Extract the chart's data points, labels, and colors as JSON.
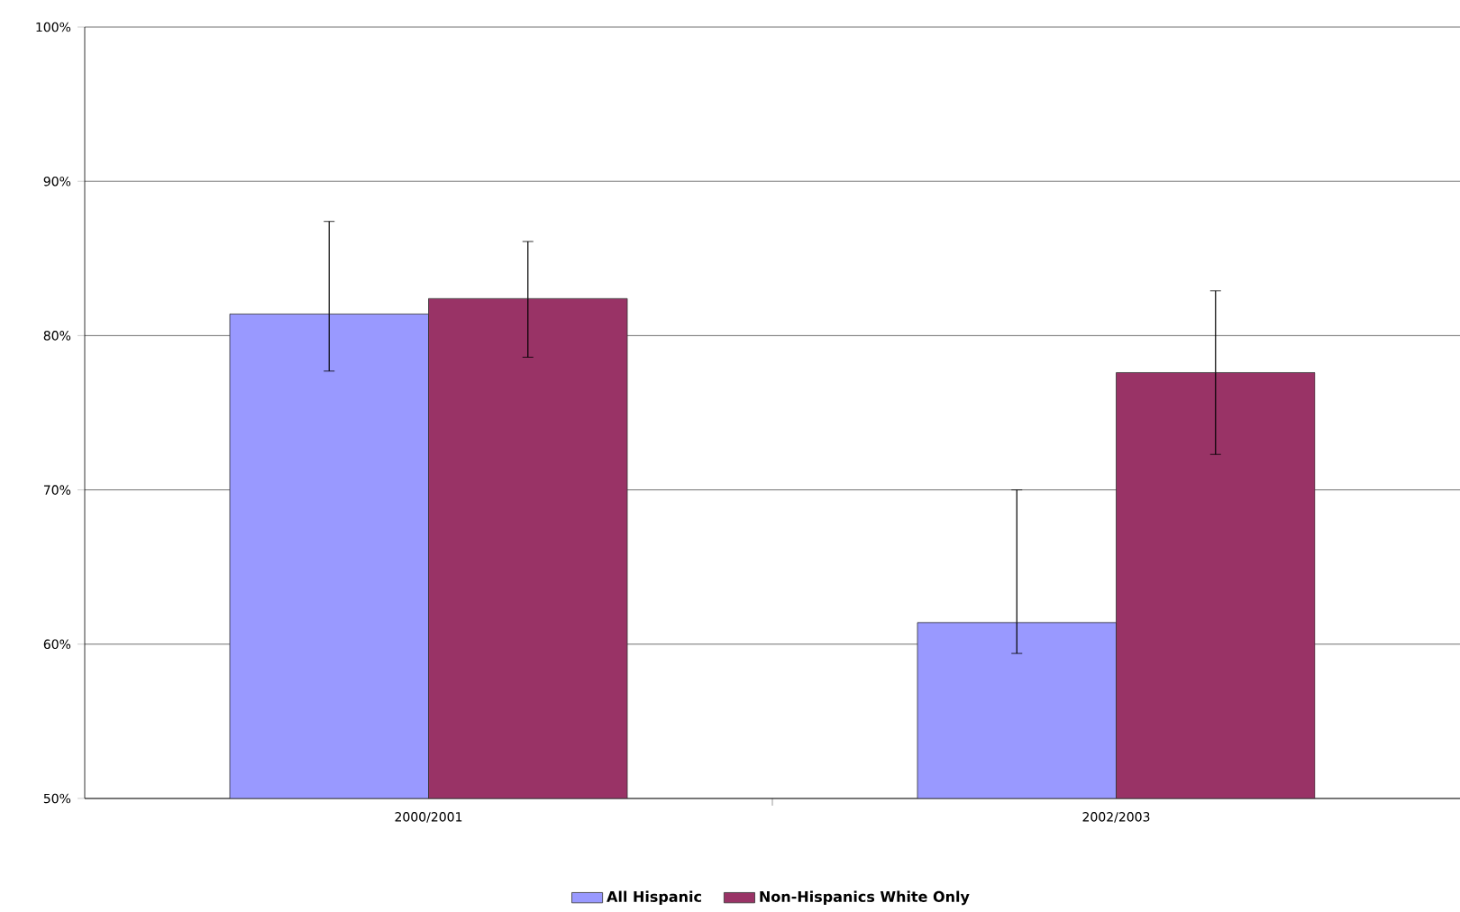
{
  "chart_data": {
    "type": "bar",
    "categories": [
      "2000/2001",
      "2002/2003"
    ],
    "series": [
      {
        "name": "All Hispanic",
        "color": "#9999ff",
        "values": [
          81.4,
          61.4
        ],
        "errors": [
          [
            77.7,
            87.4
          ],
          [
            59.4,
            70.0
          ]
        ]
      },
      {
        "name": "Non-Hispanics White Only",
        "color": "#993366",
        "values": [
          82.4,
          77.6
        ],
        "errors": [
          [
            78.6,
            86.1
          ],
          [
            72.3,
            82.9
          ]
        ]
      }
    ],
    "ylim": [
      50,
      100
    ],
    "yticks": [
      {
        "value": 50,
        "label": "50%"
      },
      {
        "value": 60,
        "label": "60%"
      },
      {
        "value": 70,
        "label": "70%"
      },
      {
        "value": 80,
        "label": "80%"
      },
      {
        "value": 90,
        "label": "90%"
      },
      {
        "value": 100,
        "label": "100%"
      }
    ],
    "grid": "y",
    "legend": "bottom"
  }
}
